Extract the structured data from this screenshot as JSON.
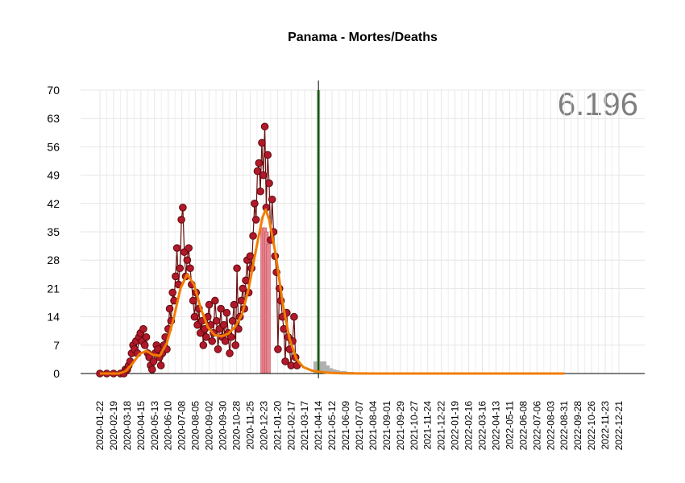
{
  "chart_data": {
    "type": "line",
    "title": "Panama - Mortes/Deaths",
    "xlabel": "",
    "ylabel": "",
    "total_label": "6.196",
    "ylim": [
      0,
      70
    ],
    "y_ticks": [
      0,
      7,
      14,
      21,
      28,
      35,
      42,
      49,
      56,
      63,
      70
    ],
    "x_tick_labels": [
      "2020-01-22",
      "2020-02-19",
      "2020-03-18",
      "2020-04-15",
      "2020-05-13",
      "2020-06-10",
      "2020-07-08",
      "2020-08-05",
      "2020-09-02",
      "2020-09-30",
      "2020-10-28",
      "2020-11-25",
      "2020-12-23",
      "2021-01-20",
      "2021-02-17",
      "2021-03-17",
      "2021-04-14",
      "2021-05-12",
      "2021-06-09",
      "2021-07-07",
      "2021-08-04",
      "2021-09-01",
      "2021-09-29",
      "2021-10-27",
      "2021-11-24",
      "2021-12-22",
      "2022-01-19",
      "2022-02-16",
      "2022-03-16",
      "2022-04-13",
      "2022-05-11",
      "2022-06-08",
      "2022-07-06",
      "2022-08-03",
      "2022-08-31",
      "2022-09-28",
      "2022-10-26",
      "2022-11-23",
      "2022-12-21"
    ],
    "cutoff_date": "2021-04-14",
    "series": [
      {
        "kind": "observed-points",
        "color": "#b2182b",
        "points": [
          [
            "2020-01-22",
            0
          ],
          [
            "2020-02-05",
            0
          ],
          [
            "2020-02-19",
            0
          ],
          [
            "2020-03-04",
            0
          ],
          [
            "2020-03-11",
            0
          ],
          [
            "2020-03-14",
            1
          ],
          [
            "2020-03-18",
            1
          ],
          [
            "2020-03-21",
            2
          ],
          [
            "2020-03-24",
            3
          ],
          [
            "2020-03-27",
            5
          ],
          [
            "2020-03-30",
            7
          ],
          [
            "2020-04-02",
            6
          ],
          [
            "2020-04-05",
            8
          ],
          [
            "2020-04-08",
            5
          ],
          [
            "2020-04-11",
            9
          ],
          [
            "2020-04-14",
            10
          ],
          [
            "2020-04-17",
            8
          ],
          [
            "2020-04-20",
            11
          ],
          [
            "2020-04-23",
            7
          ],
          [
            "2020-04-26",
            9
          ],
          [
            "2020-04-29",
            5
          ],
          [
            "2020-05-02",
            4
          ],
          [
            "2020-05-05",
            2
          ],
          [
            "2020-05-08",
            1
          ],
          [
            "2020-05-11",
            3
          ],
          [
            "2020-05-14",
            5
          ],
          [
            "2020-05-17",
            7
          ],
          [
            "2020-05-20",
            6
          ],
          [
            "2020-05-23",
            4
          ],
          [
            "2020-05-26",
            2
          ],
          [
            "2020-05-29",
            5
          ],
          [
            "2020-06-01",
            7
          ],
          [
            "2020-06-04",
            9
          ],
          [
            "2020-06-07",
            6
          ],
          [
            "2020-06-10",
            11
          ],
          [
            "2020-06-13",
            16
          ],
          [
            "2020-06-16",
            13
          ],
          [
            "2020-06-19",
            20
          ],
          [
            "2020-06-22",
            18
          ],
          [
            "2020-06-25",
            24
          ],
          [
            "2020-06-28",
            31
          ],
          [
            "2020-07-01",
            22
          ],
          [
            "2020-07-04",
            26
          ],
          [
            "2020-07-07",
            38
          ],
          [
            "2020-07-10",
            41
          ],
          [
            "2020-07-13",
            30
          ],
          [
            "2020-07-16",
            24
          ],
          [
            "2020-07-19",
            28
          ],
          [
            "2020-07-22",
            31
          ],
          [
            "2020-07-25",
            26
          ],
          [
            "2020-07-28",
            22
          ],
          [
            "2020-07-31",
            18
          ],
          [
            "2020-08-03",
            14
          ],
          [
            "2020-08-06",
            20
          ],
          [
            "2020-08-09",
            12
          ],
          [
            "2020-08-12",
            16
          ],
          [
            "2020-08-15",
            10
          ],
          [
            "2020-08-18",
            13
          ],
          [
            "2020-08-21",
            7
          ],
          [
            "2020-08-24",
            11
          ],
          [
            "2020-08-27",
            9
          ],
          [
            "2020-08-30",
            14
          ],
          [
            "2020-09-02",
            17
          ],
          [
            "2020-09-05",
            12
          ],
          [
            "2020-09-08",
            8
          ],
          [
            "2020-09-11",
            10
          ],
          [
            "2020-09-14",
            18
          ],
          [
            "2020-09-17",
            13
          ],
          [
            "2020-09-20",
            6
          ],
          [
            "2020-09-23",
            11
          ],
          [
            "2020-09-26",
            16
          ],
          [
            "2020-09-29",
            9
          ],
          [
            "2020-10-02",
            12
          ],
          [
            "2020-10-05",
            8
          ],
          [
            "2020-10-08",
            15
          ],
          [
            "2020-10-11",
            10
          ],
          [
            "2020-10-14",
            5
          ],
          [
            "2020-10-17",
            9
          ],
          [
            "2020-10-20",
            13
          ],
          [
            "2020-10-23",
            17
          ],
          [
            "2020-10-26",
            7
          ],
          [
            "2020-10-29",
            26
          ],
          [
            "2020-11-01",
            11
          ],
          [
            "2020-11-04",
            14
          ],
          [
            "2020-11-07",
            18
          ],
          [
            "2020-11-10",
            21
          ],
          [
            "2020-11-13",
            16
          ],
          [
            "2020-11-16",
            23
          ],
          [
            "2020-11-19",
            28
          ],
          [
            "2020-11-22",
            20
          ],
          [
            "2020-11-25",
            29
          ],
          [
            "2020-11-28",
            26
          ],
          [
            "2020-12-01",
            34
          ],
          [
            "2020-12-04",
            42
          ],
          [
            "2020-12-07",
            38
          ],
          [
            "2020-12-10",
            50
          ],
          [
            "2020-12-13",
            52
          ],
          [
            "2020-12-16",
            45
          ],
          [
            "2020-12-19",
            57
          ],
          [
            "2020-12-22",
            49
          ],
          [
            "2020-12-25",
            61
          ],
          [
            "2020-12-28",
            41
          ],
          [
            "2020-12-31",
            54
          ],
          [
            "2021-01-03",
            47
          ],
          [
            "2021-01-06",
            33
          ],
          [
            "2021-01-09",
            43
          ],
          [
            "2021-01-12",
            35
          ],
          [
            "2021-01-15",
            29
          ],
          [
            "2021-01-18",
            25
          ],
          [
            "2021-01-21",
            6
          ],
          [
            "2021-01-24",
            21
          ],
          [
            "2021-01-27",
            18
          ],
          [
            "2021-01-30",
            14
          ],
          [
            "2021-02-02",
            11
          ],
          [
            "2021-02-05",
            3
          ],
          [
            "2021-02-08",
            15
          ],
          [
            "2021-02-11",
            9
          ],
          [
            "2021-02-14",
            6
          ],
          [
            "2021-02-17",
            2
          ],
          [
            "2021-02-20",
            8
          ],
          [
            "2021-02-23",
            14
          ],
          [
            "2021-02-26",
            4
          ],
          [
            "2021-03-01",
            2
          ]
        ]
      },
      {
        "kind": "smoothed-curve",
        "color": "#f07d00",
        "points": [
          [
            "2020-01-22",
            0
          ],
          [
            "2020-03-01",
            0
          ],
          [
            "2020-03-15",
            0.6
          ],
          [
            "2020-03-29",
            2.5
          ],
          [
            "2020-04-12",
            4.8
          ],
          [
            "2020-04-26",
            5.6
          ],
          [
            "2020-05-10",
            4.6
          ],
          [
            "2020-05-24",
            4.4
          ],
          [
            "2020-06-07",
            7.5
          ],
          [
            "2020-06-21",
            13.5
          ],
          [
            "2020-07-05",
            21
          ],
          [
            "2020-07-19",
            24.5
          ],
          [
            "2020-08-02",
            22
          ],
          [
            "2020-08-16",
            16
          ],
          [
            "2020-08-30",
            11.5
          ],
          [
            "2020-09-13",
            9.5
          ],
          [
            "2020-09-27",
            9.2
          ],
          [
            "2020-10-11",
            9.8
          ],
          [
            "2020-10-25",
            11.5
          ],
          [
            "2020-11-08",
            14.5
          ],
          [
            "2020-11-22",
            21
          ],
          [
            "2020-12-06",
            30
          ],
          [
            "2020-12-20",
            38.5
          ],
          [
            "2020-12-27",
            40.5
          ],
          [
            "2021-01-03",
            38
          ],
          [
            "2021-01-17",
            29
          ],
          [
            "2021-01-31",
            17
          ],
          [
            "2021-02-14",
            8.5
          ],
          [
            "2021-02-28",
            3.5
          ],
          [
            "2021-03-14",
            1.6
          ],
          [
            "2021-04-01",
            0.7
          ],
          [
            "2021-05-01",
            0.2
          ],
          [
            "2021-06-01",
            0.05
          ],
          [
            "2021-08-01",
            0
          ],
          [
            "2022-08-31",
            0
          ]
        ]
      },
      {
        "kind": "highlight-bars",
        "color": "#e8868f",
        "points": [
          [
            "2020-12-20",
            36
          ],
          [
            "2020-12-24",
            36
          ],
          [
            "2020-12-28",
            35
          ],
          [
            "2021-01-01",
            32
          ]
        ]
      },
      {
        "kind": "projection-bars",
        "color": "#b0b0b0",
        "points": [
          [
            "2021-04-17",
            3
          ],
          [
            "2021-04-24",
            2
          ],
          [
            "2021-05-01",
            1.3
          ],
          [
            "2021-05-08",
            1
          ],
          [
            "2021-05-15",
            0.8
          ],
          [
            "2021-05-29",
            0.6
          ],
          [
            "2021-06-12",
            0.4
          ],
          [
            "2021-06-26",
            0.3
          ],
          [
            "2021-07-10",
            0.2
          ],
          [
            "2021-07-24",
            0.1
          ]
        ]
      }
    ]
  }
}
